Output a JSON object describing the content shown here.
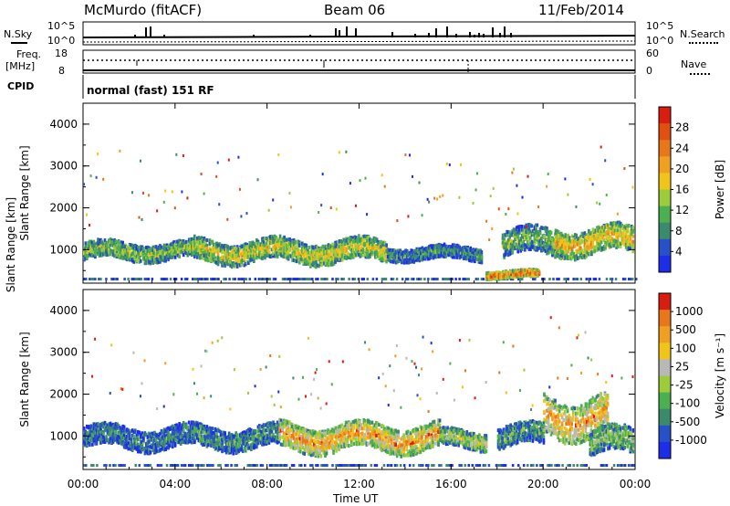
{
  "header": {
    "station": "McMurdo (fitACF)",
    "beam": "Beam 06",
    "date": "11/Feb/2014"
  },
  "top_panels": {
    "nsky_label": "N.Sky",
    "nsearch_label": "N.Search",
    "noise_tick_high": "10^5",
    "noise_tick_low": "10^0",
    "freq_label_1": "Freq.",
    "freq_label_2": "[MHz]",
    "freq_ticks": [
      "18",
      "8"
    ],
    "nave_label": "Nave",
    "nave_ticks": [
      "60",
      "0"
    ],
    "cpid_label": "CPID",
    "cpid_text": "normal (fast) 151 RF"
  },
  "chart_data": [
    {
      "type": "heatmap",
      "title": "",
      "xlabel": "Time UT",
      "ylabel": "Slant Range [km]",
      "x_ticks": [
        "00:00",
        "04:00",
        "08:00",
        "12:00",
        "16:00",
        "20:00",
        "00:00"
      ],
      "y_ticks": [
        1000,
        2000,
        3000,
        4000
      ],
      "ylim": [
        200,
        4500
      ],
      "colorbar": {
        "label": "Power [dB]",
        "ticks": [
          "4",
          "8",
          "12",
          "16",
          "20",
          "24",
          "28"
        ],
        "colors": [
          "#1c2ee8",
          "#2850c8",
          "#3c8a6e",
          "#4caf50",
          "#9ccc3c",
          "#f0c419",
          "#f0a020",
          "#e8761a",
          "#e05010",
          "#d81e10"
        ]
      },
      "echo_bands": [
        {
          "t_start": 0.0,
          "t_end": 4.8,
          "range_center": 1000,
          "spread": 200,
          "level": 0.45
        },
        {
          "t_start": 4.8,
          "t_end": 13.2,
          "range_center": 1000,
          "spread": 250,
          "level": 0.55
        },
        {
          "t_start": 13.2,
          "t_end": 17.3,
          "range_center": 950,
          "spread": 150,
          "level": 0.3
        },
        {
          "t_start": 18.2,
          "t_end": 20.8,
          "range_center": 1200,
          "spread": 300,
          "level": 0.4
        },
        {
          "t_start": 20.5,
          "t_end": 23.9,
          "range_center": 1250,
          "spread": 300,
          "level": 0.65
        },
        {
          "t_start": 17.5,
          "t_end": 19.8,
          "range_center": 450,
          "spread": 80,
          "level": 0.9
        }
      ]
    },
    {
      "type": "heatmap",
      "title": "",
      "xlabel": "Time UT",
      "ylabel": "Slant Range [km]",
      "x_ticks": [
        "00:00",
        "04:00",
        "08:00",
        "12:00",
        "16:00",
        "20:00",
        "00:00"
      ],
      "y_ticks": [
        1000,
        2000,
        3000,
        4000
      ],
      "ylim": [
        200,
        4500
      ],
      "colorbar": {
        "label": "Velocity [m s⁻¹]",
        "ticks": [
          "1000",
          "500",
          "100",
          "25",
          "-25",
          "-100",
          "-500",
          "-1000"
        ],
        "colors": [
          "#1c2ee8",
          "#2850c8",
          "#3c8a6e",
          "#4caf50",
          "#9ccc3c",
          "#b8b8b8",
          "#f0c419",
          "#f0a020",
          "#e8761a",
          "#d81e10"
        ]
      },
      "echo_bands": [
        {
          "t_start": 0.0,
          "t_end": 4.8,
          "range_center": 1000,
          "spread": 250,
          "level": 0.25
        },
        {
          "t_start": 4.8,
          "t_end": 8.5,
          "range_center": 1000,
          "spread": 250,
          "level": 0.3
        },
        {
          "t_start": 8.5,
          "t_end": 15.5,
          "range_center": 1000,
          "spread": 300,
          "level": 0.8
        },
        {
          "t_start": 15.5,
          "t_end": 17.5,
          "range_center": 950,
          "spread": 200,
          "level": 0.55
        },
        {
          "t_start": 18.0,
          "t_end": 20.0,
          "range_center": 1050,
          "spread": 250,
          "level": 0.35
        },
        {
          "t_start": 20.0,
          "t_end": 22.8,
          "range_center": 1500,
          "spread": 450,
          "level": 0.8
        },
        {
          "t_start": 22.0,
          "t_end": 23.9,
          "range_center": 900,
          "spread": 300,
          "level": 0.45
        }
      ]
    }
  ]
}
